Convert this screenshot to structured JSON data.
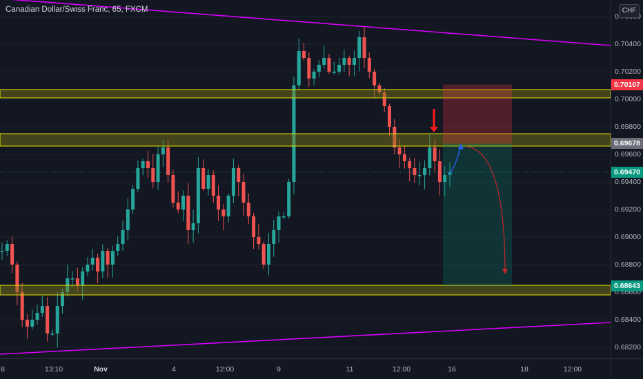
{
  "header": {
    "symbol_title": "Canadian Dollar/Swiss Franc, 65, FXCM",
    "currency_button": "CHF"
  },
  "colors": {
    "background": "#131722",
    "up_candle": "#26a69a",
    "down_candle": "#ef5350",
    "trendline": "#d500f9",
    "zone_fill": "#807d16",
    "zone_border": "#e6e600",
    "stop_area": "#f23645",
    "target_area": "#089981",
    "arrow_red": "#ff1a1a",
    "arrow_blue": "#2962ff",
    "price_current": "#089981",
    "price_stop": "#f23645",
    "price_entry": "#6a6d78",
    "price_target": "#089981"
  },
  "price_axis": {
    "labels": [
      "0.70600",
      "0.70400",
      "0.70200",
      "0.70000",
      "0.69800",
      "0.69600",
      "0.69400",
      "0.69200",
      "0.69000",
      "0.68800",
      "0.68600",
      "0.68400",
      "0.68200"
    ],
    "tags": {
      "stop": "0.70107",
      "entry": "0.69678",
      "current": "0.69470",
      "target": "0.68643"
    }
  },
  "time_axis": {
    "labels": [
      {
        "text": "8",
        "bold": false
      },
      {
        "text": "13:10",
        "bold": false
      },
      {
        "text": "Nov",
        "bold": true
      },
      {
        "text": "4",
        "bold": false
      },
      {
        "text": "12:00",
        "bold": false
      },
      {
        "text": "9",
        "bold": false
      },
      {
        "text": "11",
        "bold": false
      },
      {
        "text": "12:00",
        "bold": false
      },
      {
        "text": "16",
        "bold": false
      },
      {
        "text": "18",
        "bold": false
      },
      {
        "text": "12:00",
        "bold": false
      }
    ]
  },
  "chart_data": {
    "type": "candlestick",
    "instrument": "Canadian Dollar/Swiss Franc",
    "interval": "65",
    "source": "FXCM",
    "ylim": [
      0.6812,
      0.7072
    ],
    "zones": [
      {
        "low": 0.7001,
        "high": 0.7007
      },
      {
        "low": 0.6966,
        "high": 0.6975
      },
      {
        "low": 0.6858,
        "high": 0.6865
      }
    ],
    "position": {
      "side": "short",
      "entry": 0.69678,
      "stop": 0.70107,
      "target": 0.68643
    },
    "trendlines": [
      {
        "start": 0.7073,
        "end": 0.7039
      },
      {
        "start": 0.6815,
        "end": 0.6838
      }
    ],
    "close_path": [
      0.689,
      0.6895,
      0.688,
      0.686,
      0.684,
      0.6835,
      0.684,
      0.6845,
      0.685,
      0.683,
      0.683,
      0.685,
      0.686,
      0.687,
      0.687,
      0.6865,
      0.6875,
      0.688,
      0.6885,
      0.6875,
      0.689,
      0.688,
      0.689,
      0.6895,
      0.6905,
      0.692,
      0.6935,
      0.695,
      0.6955,
      0.695,
      0.694,
      0.696,
      0.6965,
      0.6945,
      0.6925,
      0.692,
      0.693,
      0.6905,
      0.691,
      0.695,
      0.6935,
      0.6945,
      0.693,
      0.692,
      0.6915,
      0.693,
      0.695,
      0.694,
      0.6925,
      0.6915,
      0.69,
      0.6895,
      0.688,
      0.6895,
      0.6905,
      0.6915,
      0.6915,
      0.694,
      0.701,
      0.7035,
      0.703,
      0.7015,
      0.702,
      0.7025,
      0.703,
      0.702,
      0.702,
      0.7025,
      0.703,
      0.7025,
      0.703,
      0.7045,
      0.703,
      0.702,
      0.701,
      0.7005,
      0.6995,
      0.698,
      0.6965,
      0.696,
      0.6955,
      0.695,
      0.6945,
      0.6945,
      0.695,
      0.6965,
      0.6955,
      0.694,
      0.6945,
      0.6947
    ]
  }
}
